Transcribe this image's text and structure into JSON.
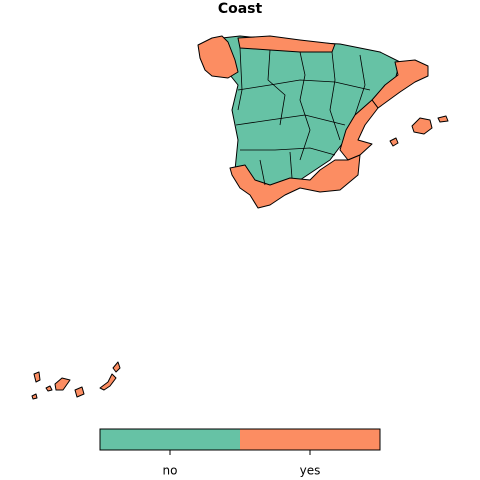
{
  "title": "Coast",
  "legend": {
    "categories": [
      "no",
      "yes"
    ],
    "colors": [
      "#66c2a5",
      "#fc8d62"
    ]
  }
}
